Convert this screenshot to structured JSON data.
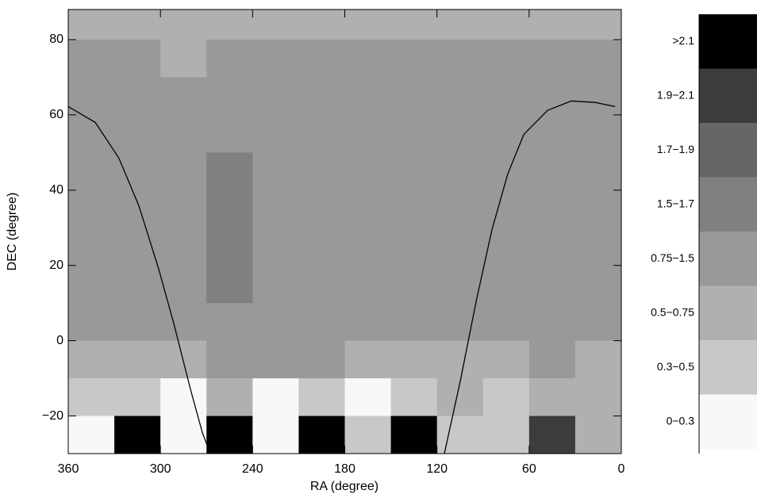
{
  "chart_data": {
    "type": "heatmap",
    "x_label": "RA (degree)",
    "y_label": "DEC (degree)",
    "xlim": [
      360,
      0
    ],
    "ylim": [
      -30,
      88
    ],
    "xticks": [
      360,
      300,
      240,
      180,
      120,
      60,
      0
    ],
    "yticks": [
      {
        "value": -20,
        "label": "−20"
      },
      0,
      20,
      40,
      60,
      80
    ],
    "x": [
      345,
      315,
      285,
      255,
      225,
      195,
      165,
      135,
      105,
      75,
      45,
      15
    ],
    "y": [
      85,
      75,
      65,
      55,
      45,
      35,
      25,
      15,
      5,
      -5,
      -15,
      -25
    ],
    "cell_width": 30,
    "cell_height": 10,
    "z": [
      [
        0.7,
        0.7,
        0.6,
        0.7,
        0.7,
        0.6,
        0.7,
        0.7,
        0.6,
        0.7,
        0.6,
        0.7
      ],
      [
        0.8,
        0.8,
        0.7,
        0.8,
        0.9,
        0.8,
        0.8,
        0.9,
        0.8,
        0.8,
        0.8,
        0.9
      ],
      [
        1.0,
        0.9,
        0.9,
        1.0,
        1.0,
        1.0,
        1.0,
        1.0,
        1.0,
        1.0,
        1.0,
        0.9
      ],
      [
        1.0,
        0.9,
        0.8,
        1.0,
        1.1,
        1.0,
        1.0,
        1.0,
        1.0,
        1.0,
        1.0,
        1.0
      ],
      [
        0.9,
        1.0,
        0.9,
        1.6,
        1.2,
        1.0,
        1.1,
        1.0,
        1.0,
        1.0,
        1.0,
        1.0
      ],
      [
        1.0,
        1.0,
        1.0,
        1.6,
        1.1,
        1.0,
        1.0,
        1.0,
        1.0,
        1.0,
        1.1,
        1.0
      ],
      [
        1.0,
        0.9,
        1.0,
        1.6,
        1.1,
        1.0,
        1.0,
        1.0,
        1.0,
        1.0,
        1.0,
        1.0
      ],
      [
        0.9,
        0.9,
        1.0,
        1.6,
        1.2,
        1.0,
        1.0,
        1.0,
        0.9,
        1.0,
        1.0,
        1.0
      ],
      [
        0.8,
        0.9,
        1.0,
        1.1,
        1.0,
        1.0,
        0.9,
        0.9,
        0.8,
        0.9,
        1.0,
        0.9
      ],
      [
        0.6,
        0.6,
        0.7,
        0.8,
        0.8,
        0.8,
        0.6,
        0.6,
        0.7,
        0.7,
        0.8,
        0.7
      ],
      [
        0.3,
        0.4,
        0.2,
        0.5,
        0.2,
        0.4,
        0.2,
        0.4,
        0.5,
        0.4,
        0.6,
        0.5
      ],
      [
        0.2,
        2.2,
        0.2,
        2.2,
        0.2,
        2.2,
        0.4,
        2.2,
        0.3,
        0.4,
        2.0,
        0.5
      ]
    ],
    "levels": [
      {
        "label": ">2.1",
        "from": 2.1,
        "color": "#000000"
      },
      {
        "label": "1.9−2.1",
        "from": 1.9,
        "to": 2.1,
        "color": "#3c3c3c"
      },
      {
        "label": "1.7−1.9",
        "from": 1.7,
        "to": 1.9,
        "color": "#666666"
      },
      {
        "label": "1.5−1.7",
        "from": 1.5,
        "to": 1.7,
        "color": "#808080"
      },
      {
        "label": "0.75−1.5",
        "from": 0.75,
        "to": 1.5,
        "color": "#999999"
      },
      {
        "label": "0.5−0.75",
        "from": 0.5,
        "to": 0.75,
        "color": "#b0b0b0"
      },
      {
        "label": "0.3−0.5",
        "from": 0.3,
        "to": 0.5,
        "color": "#c8c8c8"
      },
      {
        "label": "0−0.3",
        "from": 0,
        "to": 0.3,
        "color": "#f8f8f8"
      }
    ],
    "curve": {
      "color": "#000000",
      "x": [
        360,
        342.4,
        327,
        314,
        301,
        291,
        280.5,
        272.7,
        267.5,
        null,
        115.2,
        104.8,
        94.5,
        84.2,
        73.9,
        63.5,
        48,
        32.5,
        17,
        4
      ],
      "y": [
        62.2,
        58,
        48.5,
        35.8,
        18.9,
        4.1,
        -12.8,
        -24.4,
        -30,
        null,
        -30,
        -10.7,
        10.4,
        29.5,
        44.3,
        54.8,
        61.2,
        63.7,
        63.3,
        62.2
      ]
    }
  }
}
